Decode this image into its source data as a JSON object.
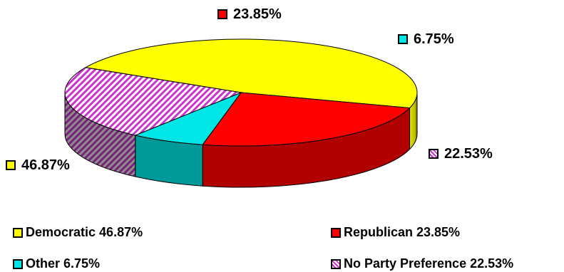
{
  "chart_data": {
    "type": "pie",
    "title": "",
    "slices": [
      {
        "name": "Democratic",
        "value": 46.87,
        "label": "46.87%",
        "legend": "Democratic 46.87%",
        "color": "#ffff00",
        "side_color": "#c8c800",
        "pattern": "solid"
      },
      {
        "name": "Republican",
        "value": 23.85,
        "label": "23.85%",
        "legend": "Republican 23.85%",
        "color": "#ff0000",
        "side_color": "#b00000",
        "pattern": "solid"
      },
      {
        "name": "Other",
        "value": 6.75,
        "label": "6.75%",
        "legend": "Other 6.75%",
        "color": "#00e5e5",
        "side_color": "#009999",
        "pattern": "solid"
      },
      {
        "name": "No Party Preference",
        "value": 22.53,
        "label": "22.53%",
        "legend": "No Party Preference 22.53%",
        "color": "#cc33cc",
        "side_color": "#7a1f7a",
        "pattern": "diagonal-hatch"
      }
    ],
    "legend_placement": "bottom",
    "style": "3d-tilted"
  }
}
